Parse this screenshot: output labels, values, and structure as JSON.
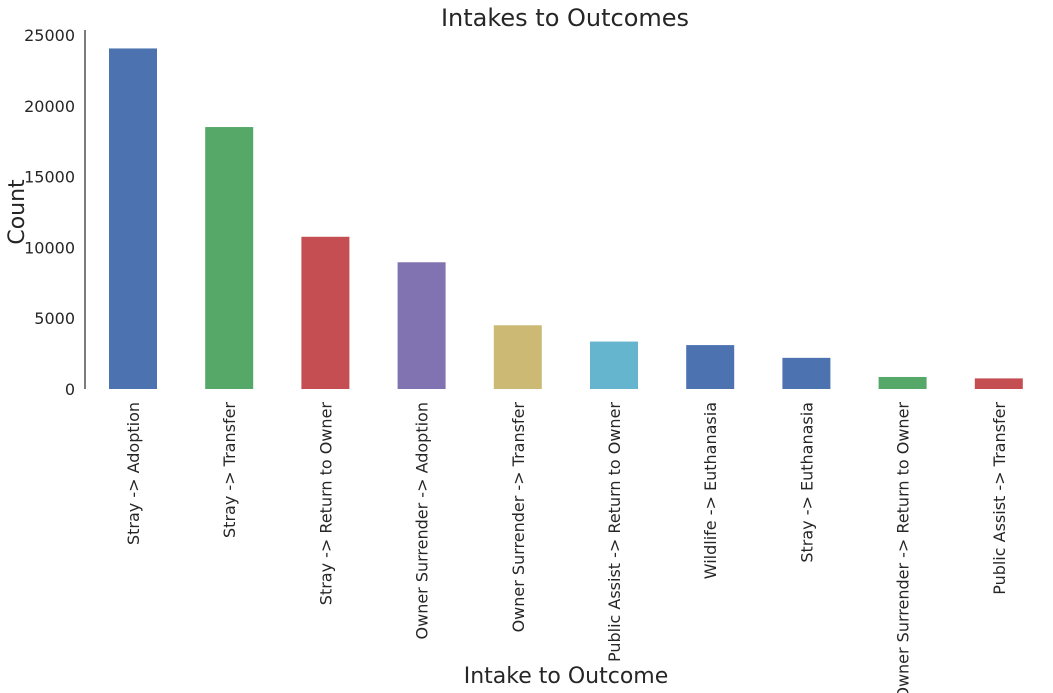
{
  "chart_data": {
    "type": "bar",
    "title": "Intakes to Outcomes",
    "xlabel": "Intake to Outcome",
    "ylabel": "Count",
    "ylim": [
      0,
      25000
    ],
    "yticks": [
      0,
      5000,
      10000,
      15000,
      20000,
      25000
    ],
    "grid": false,
    "legend": "none",
    "categories": [
      "Stray -> Adoption",
      "Stray -> Transfer",
      "Stray -> Return to Owner",
      "Owner Surrender -> Adoption",
      "Owner Surrender -> Transfer",
      "Public Assist -> Return to Owner",
      "Wildlife -> Euthanasia",
      "Stray -> Euthanasia",
      "Owner Surrender -> Return to Owner",
      "Public Assist -> Transfer"
    ],
    "values": [
      24050,
      18500,
      10750,
      8950,
      4500,
      3350,
      3100,
      2200,
      850,
      750
    ],
    "colors": [
      "#4c72b0",
      "#55a868",
      "#c44e52",
      "#8172b2",
      "#ccb974",
      "#64b5cd",
      "#4c72b0",
      "#4c72b0",
      "#55a868",
      "#c44e52"
    ]
  }
}
